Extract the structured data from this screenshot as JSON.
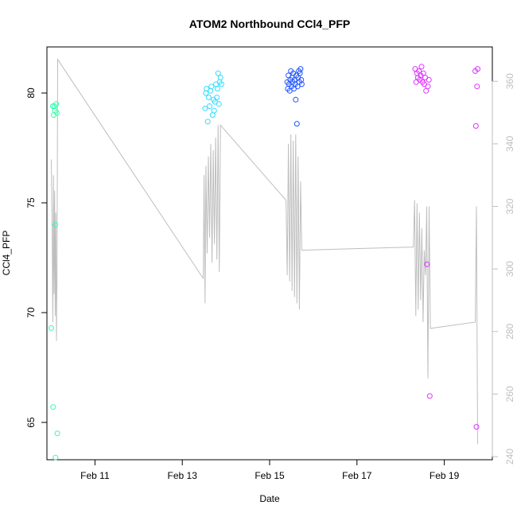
{
  "chart_data": {
    "type": "scatter",
    "title": "ATOM2 Northbound CCl4_PFP",
    "xlabel": "Date",
    "ylabel": "CCl4_PFP",
    "xlim": [
      "2016-02-09T21:36",
      "2016-02-20T02:24"
    ],
    "ylim": [
      63.3,
      82.1
    ],
    "x_ticks": [
      {
        "value": "2016-02-11",
        "label": "Feb 11"
      },
      {
        "value": "2016-02-13",
        "label": "Feb 13"
      },
      {
        "value": "2016-02-15",
        "label": "Feb 15"
      },
      {
        "value": "2016-02-17",
        "label": "Feb 17"
      },
      {
        "value": "2016-02-19",
        "label": "Feb 19"
      }
    ],
    "y_ticks": [
      65,
      70,
      75,
      80
    ],
    "y2_ticks": [
      240,
      260,
      280,
      300,
      320,
      340,
      360
    ],
    "y2lim": [
      239,
      371
    ],
    "grid": false,
    "line_color": "#bebebe",
    "points": [
      [
        "2016-02-10T00:00",
        69.3
      ],
      [
        "2016-02-10T00:50",
        79.4
      ],
      [
        "2016-02-10T01:00",
        65.7
      ],
      [
        "2016-02-10T01:20",
        79.0
      ],
      [
        "2016-02-10T01:40",
        79.4
      ],
      [
        "2016-02-10T02:00",
        79.2
      ],
      [
        "2016-02-10T02:10",
        74.0
      ],
      [
        "2016-02-10T02:20",
        63.4
      ],
      [
        "2016-02-10T02:40",
        79.5
      ],
      [
        "2016-02-10T03:00",
        79.1
      ],
      [
        "2016-02-10T03:20",
        64.5
      ],
      [
        "2016-02-13T12:30",
        79.3
      ],
      [
        "2016-02-13T13:00",
        80.0
      ],
      [
        "2016-02-13T13:20",
        80.2
      ],
      [
        "2016-02-13T14:00",
        78.7
      ],
      [
        "2016-02-13T14:30",
        79.8
      ],
      [
        "2016-02-13T15:00",
        79.4
      ],
      [
        "2016-02-13T15:30",
        80.1
      ],
      [
        "2016-02-13T16:00",
        80.3
      ],
      [
        "2016-02-13T16:40",
        79.0
      ],
      [
        "2016-02-13T17:10",
        79.7
      ],
      [
        "2016-02-13T17:30",
        79.2
      ],
      [
        "2016-02-13T18:00",
        79.6
      ],
      [
        "2016-02-13T18:30",
        80.4
      ],
      [
        "2016-02-13T19:00",
        79.8
      ],
      [
        "2016-02-13T19:20",
        80.2
      ],
      [
        "2016-02-13T19:40",
        80.9
      ],
      [
        "2016-02-13T20:10",
        79.5
      ],
      [
        "2016-02-13T20:30",
        80.5
      ],
      [
        "2016-02-13T21:00",
        80.7
      ],
      [
        "2016-02-13T21:30",
        80.4
      ],
      [
        "2016-02-15T09:40",
        80.5
      ],
      [
        "2016-02-15T10:00",
        80.2
      ],
      [
        "2016-02-15T10:20",
        80.8
      ],
      [
        "2016-02-15T10:40",
        80.4
      ],
      [
        "2016-02-15T11:00",
        80.1
      ],
      [
        "2016-02-15T11:20",
        80.6
      ],
      [
        "2016-02-15T11:40",
        81.0
      ],
      [
        "2016-02-15T12:00",
        80.3
      ],
      [
        "2016-02-15T12:20",
        80.7
      ],
      [
        "2016-02-15T12:40",
        80.5
      ],
      [
        "2016-02-15T13:00",
        80.9
      ],
      [
        "2016-02-15T13:20",
        80.2
      ],
      [
        "2016-02-15T13:40",
        80.6
      ],
      [
        "2016-02-15T14:00",
        80.4
      ],
      [
        "2016-02-15T14:20",
        79.7
      ],
      [
        "2016-02-15T14:40",
        80.8
      ],
      [
        "2016-02-15T15:00",
        78.6
      ],
      [
        "2016-02-15T15:20",
        80.3
      ],
      [
        "2016-02-15T15:40",
        80.7
      ],
      [
        "2016-02-15T16:00",
        81.0
      ],
      [
        "2016-02-15T16:20",
        80.5
      ],
      [
        "2016-02-15T16:40",
        80.9
      ],
      [
        "2016-02-15T17:00",
        81.1
      ],
      [
        "2016-02-15T17:20",
        80.6
      ],
      [
        "2016-02-15T17:40",
        80.4
      ],
      [
        "2016-02-18T08:00",
        81.1
      ],
      [
        "2016-02-18T08:30",
        80.5
      ],
      [
        "2016-02-18T09:00",
        80.9
      ],
      [
        "2016-02-18T09:30",
        80.7
      ],
      [
        "2016-02-18T10:00",
        81.0
      ],
      [
        "2016-02-18T10:30",
        80.6
      ],
      [
        "2016-02-18T11:00",
        80.8
      ],
      [
        "2016-02-18T11:30",
        81.2
      ],
      [
        "2016-02-18T12:00",
        80.5
      ],
      [
        "2016-02-18T12:30",
        80.9
      ],
      [
        "2016-02-18T13:00",
        80.4
      ],
      [
        "2016-02-18T13:30",
        80.7
      ],
      [
        "2016-02-18T14:00",
        80.1
      ],
      [
        "2016-02-18T14:30",
        72.2
      ],
      [
        "2016-02-18T15:00",
        80.3
      ],
      [
        "2016-02-18T15:30",
        80.6
      ],
      [
        "2016-02-18T16:00",
        66.2
      ],
      [
        "2016-02-19T17:00",
        81.0
      ],
      [
        "2016-02-19T17:20",
        78.5
      ],
      [
        "2016-02-19T17:40",
        64.8
      ],
      [
        "2016-02-19T18:00",
        80.3
      ],
      [
        "2016-02-19T18:20",
        81.1
      ]
    ],
    "secondary_line": [
      [
        "2016-02-10T00:00",
        335
      ],
      [
        "2016-02-10T00:30",
        310
      ],
      [
        "2016-02-10T00:50",
        283
      ],
      [
        "2016-02-10T01:10",
        330
      ],
      [
        "2016-02-10T01:30",
        292
      ],
      [
        "2016-02-10T01:50",
        325
      ],
      [
        "2016-02-10T02:10",
        285
      ],
      [
        "2016-02-10T02:30",
        318
      ],
      [
        "2016-02-10T02:50",
        277
      ],
      [
        "2016-02-10T03:10",
        298
      ],
      [
        "2016-02-10T03:30",
        367
      ],
      [
        "2016-02-13T11:30",
        297
      ],
      [
        "2016-02-13T12:00",
        330
      ],
      [
        "2016-02-13T12:30",
        289
      ],
      [
        "2016-02-13T13:00",
        333
      ],
      [
        "2016-02-13T13:40",
        305
      ],
      [
        "2016-02-13T14:20",
        336
      ],
      [
        "2016-02-13T15:00",
        310
      ],
      [
        "2016-02-13T15:40",
        340
      ],
      [
        "2016-02-13T16:20",
        302
      ],
      [
        "2016-02-13T17:00",
        338
      ],
      [
        "2016-02-13T17:40",
        308
      ],
      [
        "2016-02-13T18:20",
        342
      ],
      [
        "2016-02-13T19:00",
        303
      ],
      [
        "2016-02-13T19:40",
        346
      ],
      [
        "2016-02-13T20:20",
        299
      ],
      [
        "2016-02-13T21:00",
        346
      ],
      [
        "2016-02-15T09:00",
        322
      ],
      [
        "2016-02-15T09:40",
        298
      ],
      [
        "2016-02-15T10:20",
        340
      ],
      [
        "2016-02-15T11:00",
        296
      ],
      [
        "2016-02-15T11:40",
        343
      ],
      [
        "2016-02-15T12:20",
        293
      ],
      [
        "2016-02-15T13:00",
        341
      ],
      [
        "2016-02-15T13:40",
        291
      ],
      [
        "2016-02-15T14:20",
        343
      ],
      [
        "2016-02-15T15:00",
        289
      ],
      [
        "2016-02-15T15:40",
        336
      ],
      [
        "2016-02-15T16:20",
        287
      ],
      [
        "2016-02-15T17:00",
        328
      ],
      [
        "2016-02-15T17:40",
        306
      ],
      [
        "2016-02-18T07:00",
        307
      ],
      [
        "2016-02-18T07:40",
        322
      ],
      [
        "2016-02-18T08:20",
        285
      ],
      [
        "2016-02-18T09:00",
        321
      ],
      [
        "2016-02-18T09:40",
        287
      ],
      [
        "2016-02-18T10:20",
        318
      ],
      [
        "2016-02-18T11:00",
        290
      ],
      [
        "2016-02-18T11:40",
        313
      ],
      [
        "2016-02-18T12:20",
        283
      ],
      [
        "2016-02-18T13:00",
        306
      ],
      [
        "2016-02-18T13:40",
        298
      ],
      [
        "2016-02-18T14:20",
        320
      ],
      [
        "2016-02-18T15:00",
        265
      ],
      [
        "2016-02-18T15:40",
        320
      ],
      [
        "2016-02-18T16:20",
        281
      ],
      [
        "2016-02-19T17:00",
        283
      ],
      [
        "2016-02-19T17:40",
        320
      ],
      [
        "2016-02-19T18:20",
        244
      ]
    ],
    "point_colors": [
      "#33ffaa",
      "#33ddff",
      "#2255ff",
      "#7733ff",
      "#dd33ff"
    ]
  }
}
